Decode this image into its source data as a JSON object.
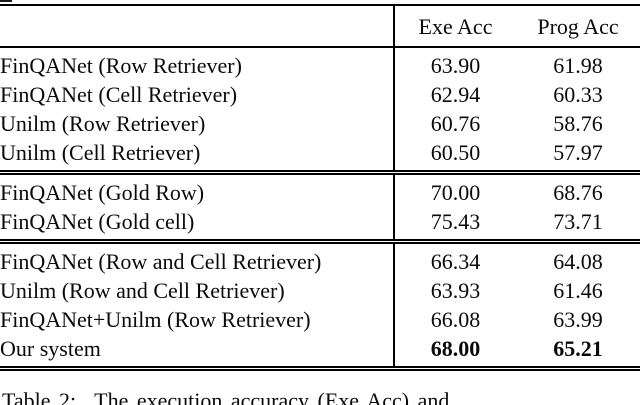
{
  "table": {
    "columns": {
      "exe": "Exe Acc",
      "prog": "Prog Acc"
    },
    "sections": [
      {
        "rows": [
          {
            "label": "FinQANet (Row Retriever)",
            "exe": "63.90",
            "prog": "61.98"
          },
          {
            "label": "FinQANet (Cell Retriever)",
            "exe": "62.94",
            "prog": "60.33"
          },
          {
            "label": "Unilm (Row Retriever)",
            "exe": "60.76",
            "prog": "58.76"
          },
          {
            "label": "Unilm (Cell Retriever)",
            "exe": "60.50",
            "prog": "57.97"
          }
        ]
      },
      {
        "rows": [
          {
            "label": "FinQANet (Gold Row)",
            "exe": "70.00",
            "prog": "68.76"
          },
          {
            "label": "FinQANet (Gold cell)",
            "exe": "75.43",
            "prog": "73.71"
          }
        ]
      },
      {
        "rows": [
          {
            "label": "FinQANet (Row and Cell Retriever)",
            "exe": "66.34",
            "prog": "64.08"
          },
          {
            "label": "Unilm (Row and Cell Retriever)",
            "exe": "63.93",
            "prog": "61.46"
          },
          {
            "label": "FinQANet+Unilm (Row Retriever)",
            "exe": "66.08",
            "prog": "63.99"
          },
          {
            "label": "Our system",
            "exe": "68.00",
            "prog": "65.21"
          }
        ]
      }
    ]
  },
  "caption": {
    "label": "Table 2:",
    "text": "The execution accuracy (Exe Acc) and"
  },
  "colors": {
    "text": "#0a0a0a",
    "rule": "#000000",
    "background": "#ffffff"
  }
}
